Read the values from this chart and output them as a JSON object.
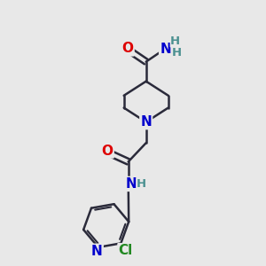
{
  "bg_color": "#e8e8e8",
  "bond_color": "#2a2a3a",
  "bond_width": 1.8,
  "atom_colors": {
    "O": "#dd0000",
    "N": "#0000cc",
    "H": "#4a9090",
    "Cl": "#228822",
    "C": "#2a2a3a"
  },
  "font_size_main": 11,
  "font_size_h": 9.5,
  "figsize": [
    3.0,
    3.0
  ],
  "dpi": 100,
  "xlim": [
    0,
    10
  ],
  "ylim": [
    0,
    10
  ]
}
